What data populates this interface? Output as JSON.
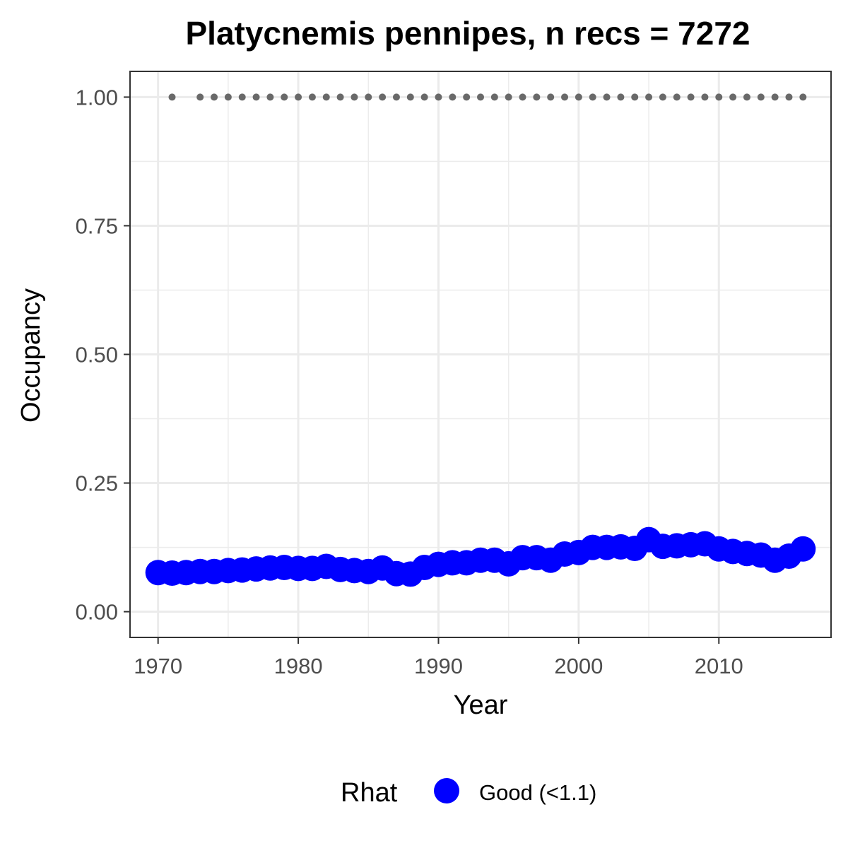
{
  "chart_data": {
    "type": "scatter",
    "title": "Platycnemis pennipes, n recs = 7272",
    "xlabel": "Year",
    "ylabel": "Occupancy",
    "xlim": [
      1968,
      2018
    ],
    "ylim": [
      -0.05,
      1.05
    ],
    "x_ticks": [
      1970,
      1980,
      1990,
      2000,
      2010
    ],
    "x_tick_labels": [
      "1970",
      "1980",
      "1990",
      "2000",
      "2010"
    ],
    "y_ticks": [
      0,
      0.25,
      0.5,
      0.75,
      1.0
    ],
    "y_tick_labels": [
      "0.00",
      "0.25",
      "0.50",
      "0.75",
      "1.00"
    ],
    "grid": true,
    "legend_position": "bottom",
    "legend": {
      "title": "Rhat",
      "entries": [
        {
          "label": "Good (<1.1)",
          "color": "#0000ff"
        }
      ]
    },
    "series": [
      {
        "name": "Good (<1.1)",
        "color": "#0000ff",
        "marker": "large-circle",
        "x": [
          1970,
          1971,
          1972,
          1973,
          1974,
          1975,
          1976,
          1977,
          1978,
          1979,
          1980,
          1981,
          1982,
          1983,
          1984,
          1985,
          1986,
          1987,
          1988,
          1989,
          1990,
          1991,
          1992,
          1993,
          1994,
          1995,
          1996,
          1997,
          1998,
          1999,
          2000,
          2001,
          2002,
          2003,
          2004,
          2005,
          2006,
          2007,
          2008,
          2009,
          2010,
          2011,
          2012,
          2013,
          2014,
          2015,
          2016
        ],
        "y": [
          0.076,
          0.075,
          0.076,
          0.078,
          0.078,
          0.08,
          0.081,
          0.083,
          0.085,
          0.086,
          0.084,
          0.084,
          0.088,
          0.082,
          0.08,
          0.078,
          0.085,
          0.074,
          0.073,
          0.086,
          0.092,
          0.095,
          0.095,
          0.1,
          0.1,
          0.093,
          0.105,
          0.105,
          0.1,
          0.112,
          0.115,
          0.125,
          0.125,
          0.126,
          0.123,
          0.14,
          0.127,
          0.128,
          0.13,
          0.132,
          0.122,
          0.117,
          0.113,
          0.11,
          0.1,
          0.108,
          0.122
        ]
      },
      {
        "color": "#696969",
        "marker": "small-dot",
        "x": [
          1971,
          1973,
          1974,
          1975,
          1976,
          1977,
          1978,
          1979,
          1980,
          1981,
          1982,
          1983,
          1984,
          1985,
          1986,
          1987,
          1988,
          1989,
          1990,
          1991,
          1992,
          1993,
          1994,
          1995,
          1996,
          1997,
          1998,
          1999,
          2000,
          2001,
          2002,
          2003,
          2004,
          2005,
          2006,
          2007,
          2008,
          2009,
          2010,
          2011,
          2012,
          2013,
          2014,
          2015,
          2016
        ],
        "y": [
          1,
          1,
          1,
          1,
          1,
          1,
          1,
          1,
          1,
          1,
          1,
          1,
          1,
          1,
          1,
          1,
          1,
          1,
          1,
          1,
          1,
          1,
          1,
          1,
          1,
          1,
          1,
          1,
          1,
          1,
          1,
          1,
          1,
          1,
          1,
          1,
          1,
          1,
          1,
          1,
          1,
          1,
          1,
          1,
          1
        ]
      }
    ]
  }
}
